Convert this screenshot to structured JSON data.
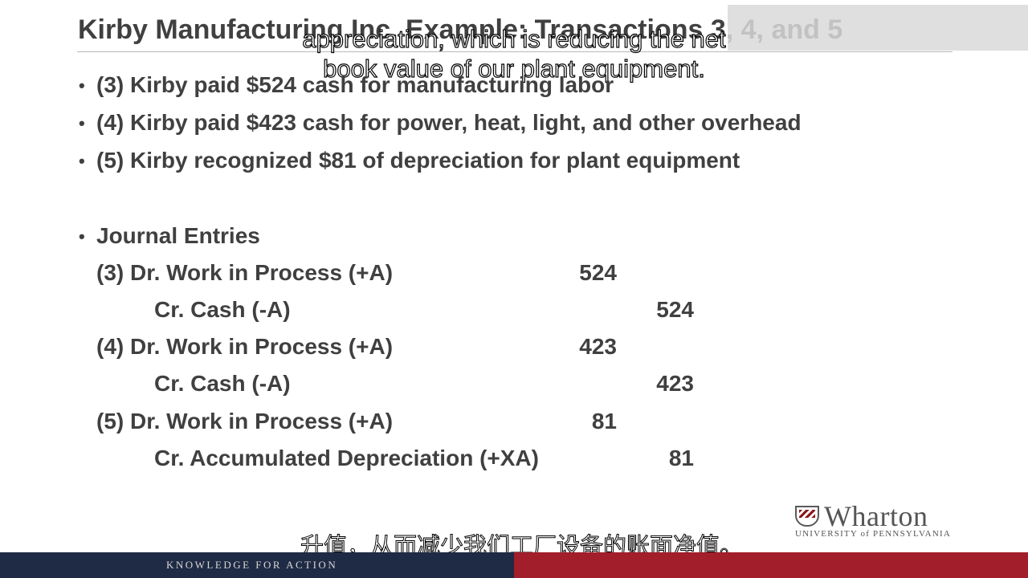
{
  "slide": {
    "title": "Kirby Manufacturing Inc. Example: Transactions 3, 4, and 5",
    "bullets": [
      "(3) Kirby paid $524 cash for manufacturing labor",
      "(4) Kirby paid $423 cash for power, heat, light, and other overhead",
      "(5) Kirby recognized $81 of depreciation for plant equipment"
    ],
    "journal_heading": "Journal Entries",
    "journal_entries": [
      {
        "label": "(3) Dr. Work in Process (+A)",
        "debit": "524"
      },
      {
        "label": "Cr. Cash (-A)",
        "credit": "524"
      },
      {
        "label": "(4) Dr. Work in Process (+A)",
        "debit": "423"
      },
      {
        "label": "Cr. Cash (-A)",
        "credit": "423"
      },
      {
        "label": "(5) Dr. Work in Process (+A)",
        "debit": "81"
      },
      {
        "label": "Cr. Accumulated Depreciation (+XA)",
        "credit": "81"
      }
    ]
  },
  "captions": {
    "top_line1": "appreciation, which is reducing the net",
    "top_line2": "book value of our plant equipment.",
    "bottom": "升值，从而减少我们工厂设备的账面净值。"
  },
  "logo": {
    "name": "Wharton",
    "subtitle": "UNIVERSITY of PENNSYLVANIA"
  },
  "footer": {
    "tagline": "KNOWLEDGE FOR ACTION"
  },
  "colors": {
    "footer_navy": "#1f2a44",
    "footer_red": "#a11e2a",
    "text_gray": "#404040"
  }
}
